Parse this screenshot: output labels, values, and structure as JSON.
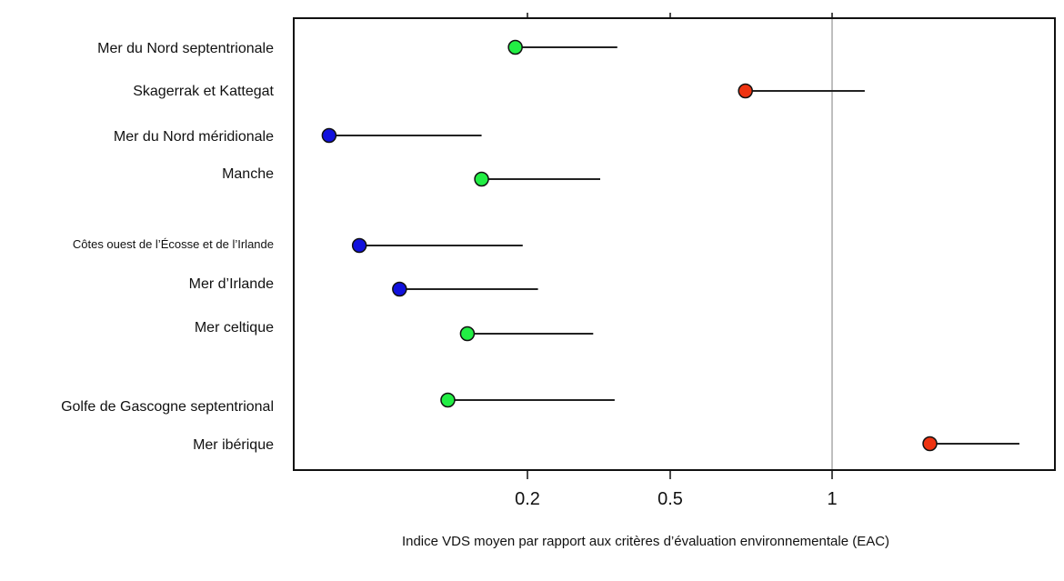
{
  "chart_data": {
    "type": "scatter",
    "subtype": "dot-with-range-line",
    "title": "",
    "xlabel": "Indice VDS moyen par rapport aux critères d’évaluation environnementale (EAC)",
    "ylabel": "",
    "x_scale": "log",
    "x_ticks": [
      0.2,
      0.5,
      1
    ],
    "x_tick_labels": [
      "0.2",
      "0.5",
      "1"
    ],
    "reference_line": 1,
    "grid": false,
    "colors": {
      "green": "#22ee44",
      "red": "#ee3311",
      "blue": "#1111dd",
      "reference": "#aaaaaa"
    },
    "categories": [
      "Mer du Nord septentrionale",
      "Skagerrak et Kattegat",
      "Mer du Nord méridionale",
      "Manche",
      "Côtes ouest de l’Écosse et de l’Irlande",
      "Mer d’Irlande",
      "Mer celtique",
      "Golfe de Gascogne septentrional",
      "Mer ibérique"
    ],
    "points": [
      {
        "mean": 0.185,
        "upper": 0.356,
        "color": "green"
      },
      {
        "mean": 0.69,
        "upper": 1.15,
        "color": "red"
      },
      {
        "mean": 0.056,
        "upper": 0.149,
        "color": "blue"
      },
      {
        "mean": 0.149,
        "upper": 0.319,
        "color": "green"
      },
      {
        "mean": 0.068,
        "upper": 0.194,
        "color": "blue"
      },
      {
        "mean": 0.088,
        "upper": 0.214,
        "color": "blue"
      },
      {
        "mean": 0.136,
        "upper": 0.305,
        "color": "green"
      },
      {
        "mean": 0.12,
        "upper": 0.35,
        "color": "green"
      },
      {
        "mean": 1.52,
        "upper": 2.23,
        "color": "red"
      }
    ]
  }
}
